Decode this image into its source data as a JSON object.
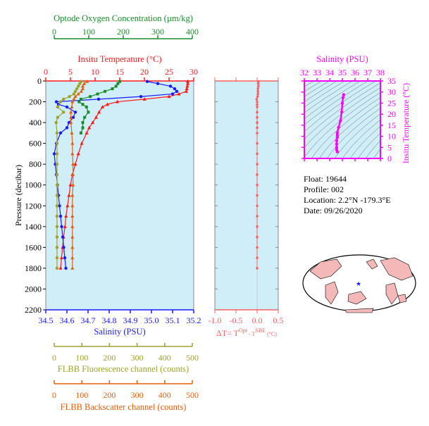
{
  "colors": {
    "oxygen": "#1a8a2a",
    "temperature": "#ff1a1a",
    "salinity": "#1a1aff",
    "fluorescence": "#a0a030",
    "backscatter": "#e06010",
    "dt": "#ff6060",
    "ts": "#ff00ff",
    "panel_bg": "#d0eef8"
  },
  "chart_data": [
    {
      "type": "line",
      "panel": "profile",
      "y_axis": {
        "label": "Pressure (decibar)",
        "range": [
          0,
          2200
        ],
        "inverted": true,
        "ticks": [
          "0",
          "200",
          "400",
          "600",
          "800",
          "1000",
          "1200",
          "1400",
          "1600",
          "1800",
          "2000",
          "2200"
        ]
      },
      "axes": [
        {
          "key": "oxygen",
          "label": "Optode Oxygen Concentration (µm/kg)",
          "range": [
            0,
            400
          ],
          "ticks": [
            "0",
            "100",
            "200",
            "300",
            "400"
          ],
          "position": "top-outer"
        },
        {
          "key": "temperature",
          "label": "Insitu Temperature (°C)",
          "range": [
            0,
            30
          ],
          "ticks": [
            "0",
            "5",
            "10",
            "15",
            "20",
            "25",
            "30"
          ],
          "position": "top"
        },
        {
          "key": "salinity",
          "label": "Salinity (PSU)",
          "range": [
            34.5,
            35.2
          ],
          "ticks": [
            "34.5",
            "34.6",
            "34.7",
            "34.8",
            "34.9",
            "35.0",
            "35.1",
            "35.2"
          ],
          "position": "bottom"
        },
        {
          "key": "fluorescence",
          "label": "FLBB Fluorescence channel (counts)",
          "range": [
            0,
            500
          ],
          "ticks": [
            "0",
            "100",
            "200",
            "300",
            "400",
            "500"
          ],
          "position": "bottom-outer"
        },
        {
          "key": "backscatter",
          "label": "FLBB Backscatter channel (counts)",
          "range": [
            0,
            500
          ],
          "ticks": [
            "0",
            "100",
            "200",
            "300",
            "400",
            "500"
          ],
          "position": "bottom-outer2"
        }
      ],
      "series": [
        {
          "key": "temperature",
          "pressure": [
            5,
            25,
            50,
            75,
            100,
            125,
            150,
            175,
            200,
            225,
            250,
            300,
            350,
            400,
            450,
            500,
            600,
            700,
            800,
            900,
            1000,
            1100,
            1200,
            1300,
            1400,
            1500,
            1600,
            1700,
            1800
          ],
          "values": [
            28.8,
            28.8,
            28.7,
            28.6,
            28.5,
            27.0,
            25.0,
            20.0,
            14.5,
            12.5,
            11.5,
            10.8,
            10.2,
            9.5,
            8.8,
            8.3,
            7.3,
            6.6,
            6.0,
            5.4,
            5.0,
            4.7,
            4.4,
            4.1,
            3.9,
            3.6,
            3.4,
            3.2,
            3.0
          ]
        },
        {
          "key": "salinity",
          "pressure": [
            5,
            25,
            50,
            75,
            100,
            125,
            150,
            175,
            200,
            225,
            250,
            300,
            350,
            400,
            450,
            500,
            600,
            700,
            800,
            900,
            1000,
            1100,
            1200,
            1300,
            1400,
            1500,
            1600,
            1700,
            1800
          ],
          "values": [
            34.98,
            35.03,
            35.09,
            35.11,
            35.12,
            35.1,
            34.95,
            34.75,
            34.55,
            34.56,
            34.6,
            34.64,
            34.63,
            34.61,
            34.6,
            34.57,
            34.55,
            34.54,
            34.545,
            34.55,
            34.555,
            34.56,
            34.565,
            34.57,
            34.575,
            34.58,
            34.585,
            34.59,
            34.595
          ]
        },
        {
          "key": "oxygen",
          "pressure": [
            5,
            25,
            50,
            75,
            100,
            125,
            150,
            175,
            200,
            225,
            250,
            300,
            350,
            400,
            450,
            500
          ],
          "values": [
            200,
            195,
            190,
            180,
            160,
            140,
            120,
            95,
            90,
            100,
            110,
            115,
            105,
            100,
            100,
            95
          ]
        },
        {
          "key": "fluorescence",
          "pressure": [
            5,
            25,
            50,
            75,
            100,
            125,
            150,
            175,
            200,
            250,
            300,
            350,
            400,
            500,
            600,
            700,
            800,
            900,
            1000,
            1100,
            1200,
            1300,
            1400,
            1500,
            1600,
            1700,
            1800
          ],
          "values": [
            120,
            115,
            110,
            105,
            100,
            95,
            80,
            60,
            50,
            40,
            60,
            40,
            35,
            38,
            38,
            38,
            38,
            38,
            38,
            38,
            38,
            38,
            38,
            38,
            38,
            38,
            38
          ]
        },
        {
          "key": "backscatter",
          "pressure": [
            5,
            25,
            50,
            75,
            100,
            125,
            150,
            175,
            200,
            250,
            300,
            350,
            400,
            500,
            600,
            700,
            800,
            900,
            1000,
            1100,
            1200,
            1300,
            1400,
            1500,
            1600,
            1700,
            1800
          ],
          "values": [
            140,
            130,
            125,
            125,
            120,
            110,
            100,
            95,
            90,
            88,
            85,
            85,
            85,
            88,
            90,
            90,
            92,
            92,
            92,
            90,
            90,
            90,
            90,
            90,
            90,
            90,
            90
          ]
        }
      ]
    },
    {
      "type": "scatter",
      "panel": "dt",
      "x_axis": {
        "label": "ΔT= T",
        "label_sup1": "Opt",
        "label_mid": " - T",
        "label_sup2": "SBE",
        "label_end": " (°C)",
        "range": [
          -1.0,
          0.5
        ],
        "ticks": [
          "-1.0",
          "-0.5",
          "0.0",
          "0.5"
        ]
      },
      "y_range": [
        0,
        2200
      ],
      "points": {
        "pressure": [
          5,
          25,
          50,
          75,
          100,
          125,
          150,
          175,
          200,
          225,
          250,
          300,
          350,
          400,
          450,
          500,
          600,
          700,
          800,
          900,
          1000,
          1100,
          1200,
          1300,
          1400,
          1500,
          1600,
          1700,
          1800
        ],
        "values": [
          0.03,
          0.03,
          0.03,
          0.02,
          0.02,
          0.02,
          0.01,
          -0.01,
          0.0,
          0.0,
          0.0,
          0.0,
          0.0,
          0.0,
          0.0,
          0.0,
          0.0,
          0.0,
          0.0,
          0.0,
          0.0,
          0.0,
          0.0,
          0.0,
          0.0,
          0.0,
          0.0,
          0.0,
          0.0
        ]
      }
    },
    {
      "type": "scatter",
      "panel": "ts",
      "x_axis": {
        "label": "Salinity (PSU)",
        "range": [
          32,
          38
        ],
        "ticks": [
          "32",
          "33",
          "34",
          "35",
          "36",
          "37",
          "38"
        ]
      },
      "y_axis": {
        "label": "Insitu Temperature (°C)",
        "range": [
          0,
          35
        ],
        "ticks": [
          "0",
          "5",
          "10",
          "15",
          "20",
          "25",
          "30",
          "35"
        ]
      },
      "points": {
        "salinity": [
          35.1,
          35.05,
          35.0,
          34.95,
          34.85,
          34.7,
          34.6,
          34.6,
          34.6,
          34.55,
          34.55,
          34.55,
          34.55,
          34.6
        ],
        "temperature": [
          28.8,
          27.5,
          25.0,
          21.0,
          17.0,
          14.0,
          11.5,
          10.5,
          9.5,
          8.0,
          6.5,
          5.0,
          4.0,
          3.0
        ]
      }
    }
  ],
  "float_info": {
    "float": "Float:  19644",
    "profile": "Profile:  002",
    "location": "Location:  2.2°N  -179.3°E",
    "date": "Date:  09/26/2020"
  }
}
